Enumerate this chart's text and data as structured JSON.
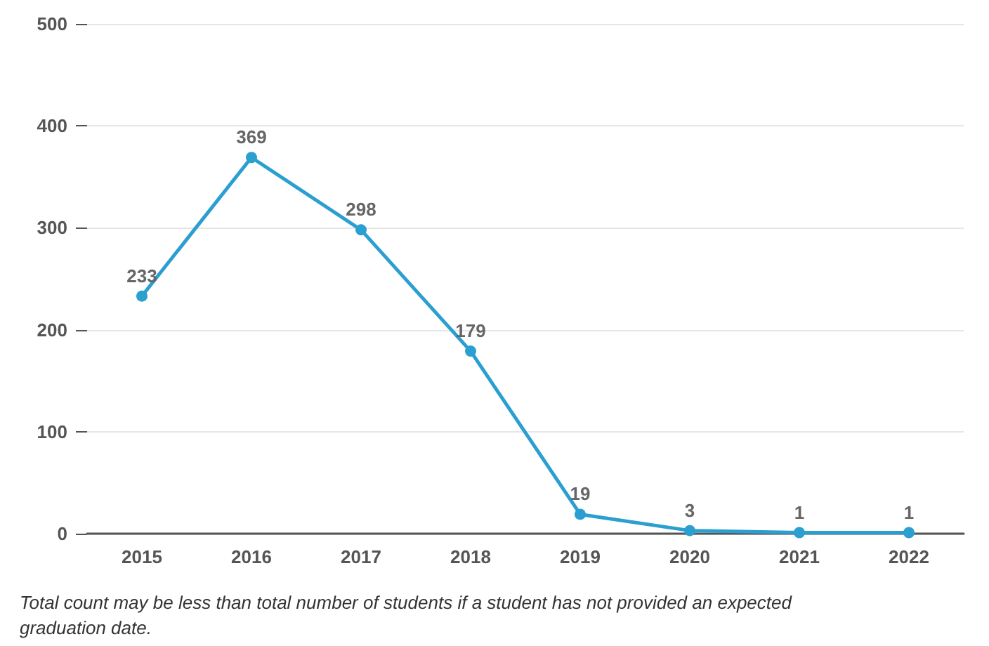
{
  "chart_data": {
    "type": "line",
    "categories": [
      "2015",
      "2016",
      "2017",
      "2018",
      "2019",
      "2020",
      "2021",
      "2022"
    ],
    "series": [
      {
        "color": "#2a9fd0",
        "values": [
          233,
          369,
          298,
          179,
          19,
          3,
          1,
          1
        ]
      }
    ],
    "ylim": [
      0,
      500
    ],
    "yticks": [
      0,
      100,
      200,
      300,
      400,
      500
    ],
    "grid": "y",
    "marker": "circle",
    "data_labels": true,
    "annotations": [
      "Total count may be less than total number of students if a student has not provided an expected graduation date."
    ]
  }
}
